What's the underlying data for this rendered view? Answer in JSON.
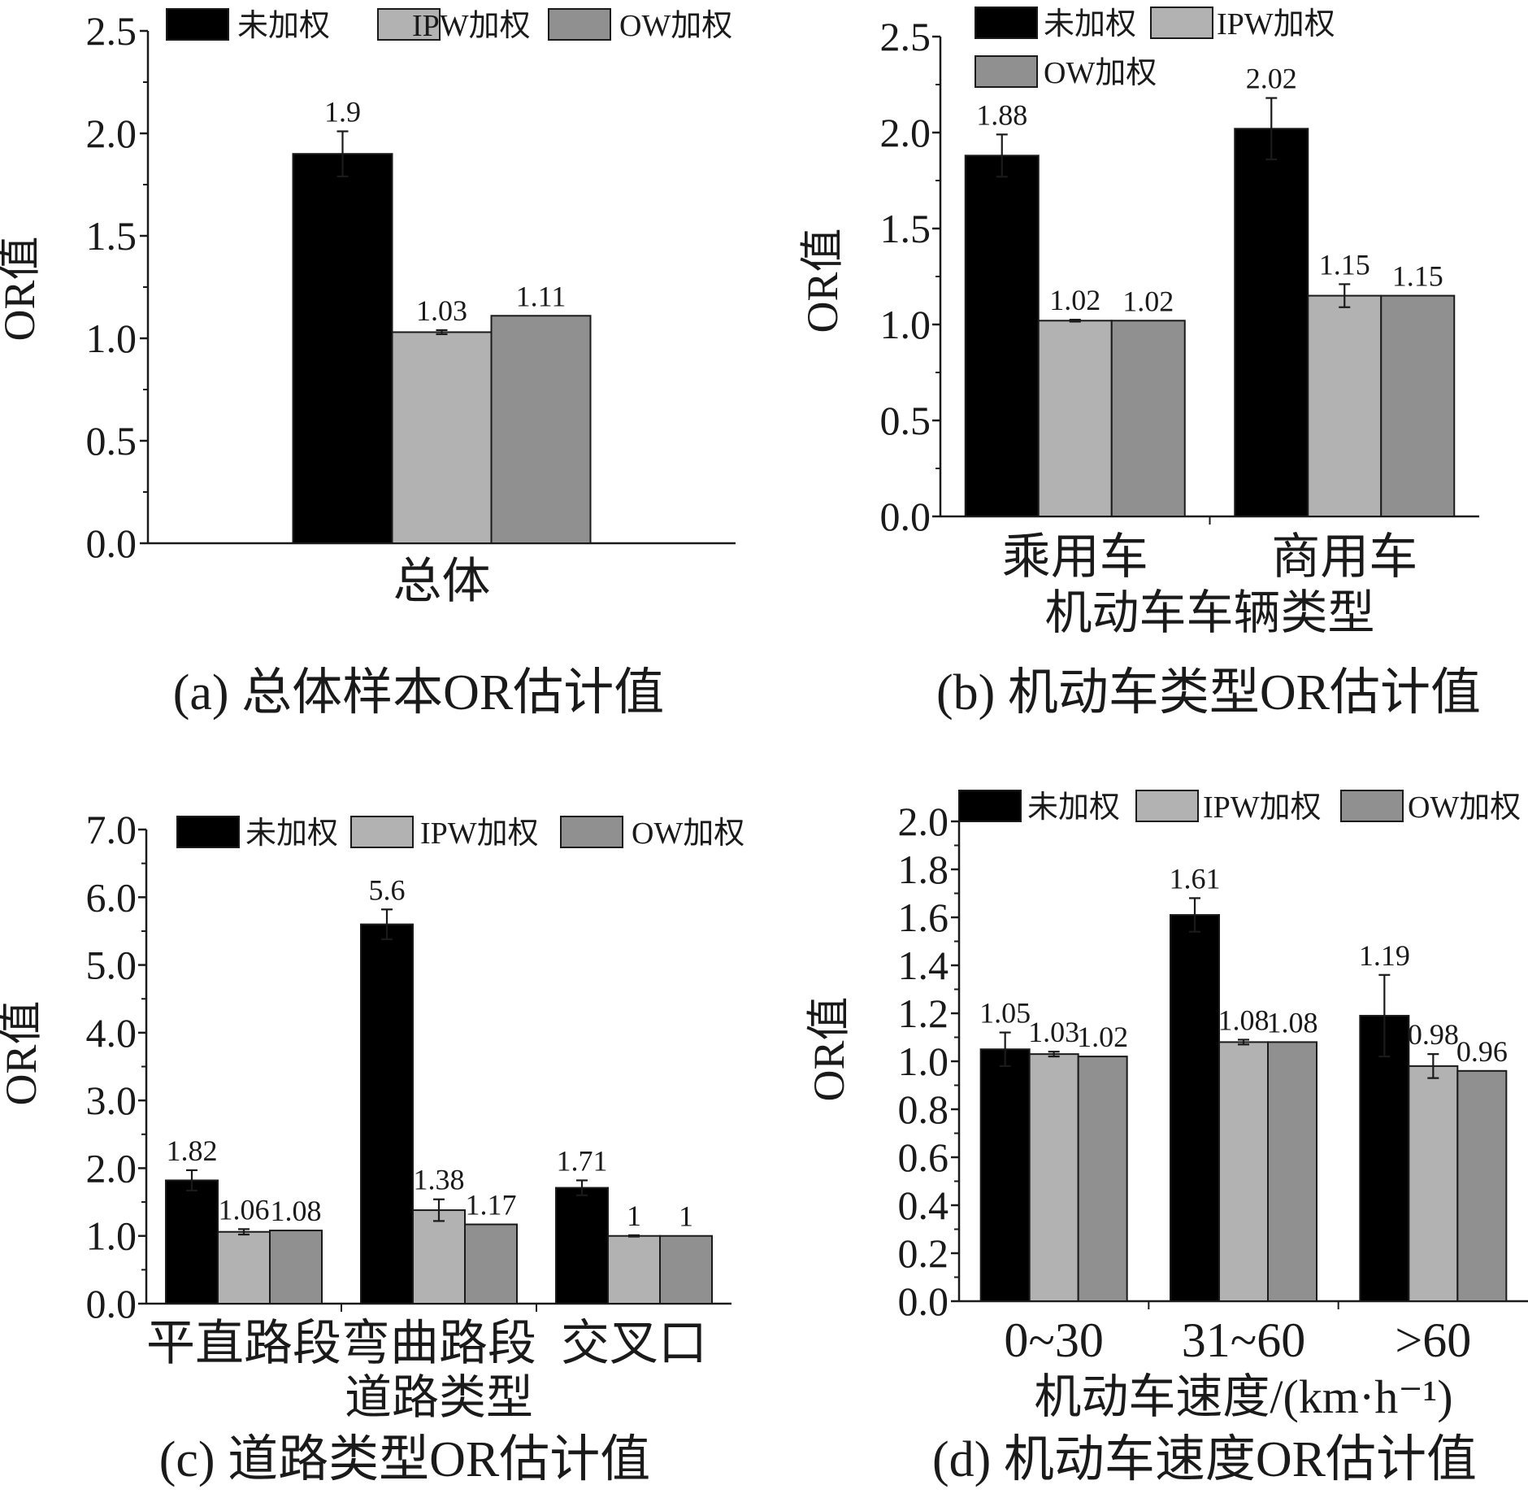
{
  "colors": {
    "series_unweighted": "#000000",
    "series_ipw": "#b2b2b2",
    "series_ow": "#909090",
    "axis": "#1a1a1a"
  },
  "chart_data": [
    {
      "type": "bar",
      "caption": "(a) 总体样本OR估计值",
      "xlabel": "",
      "categories": [
        "总体"
      ],
      "ylabel": "OR值",
      "ylim": [
        0,
        2.5
      ],
      "yticks": [
        0.0,
        0.5,
        1.0,
        1.5,
        2.0,
        2.5
      ],
      "ytick_labels": [
        "0.0",
        "0.5",
        "1.0",
        "1.5",
        "2.0",
        "2.5"
      ],
      "legend_position": "top-right",
      "series": [
        {
          "name": "未加权",
          "values": [
            1.9
          ],
          "labels": [
            "1.9"
          ],
          "errors": [
            0.11
          ]
        },
        {
          "name": "IPW加权",
          "values": [
            1.03
          ],
          "labels": [
            "1.03"
          ],
          "errors": [
            0.01
          ]
        },
        {
          "name": "OW加权",
          "values": [
            1.11
          ],
          "labels": [
            "1.11"
          ],
          "errors": [
            0
          ]
        }
      ]
    },
    {
      "type": "bar",
      "caption": "(b) 机动车类型OR估计值",
      "xlabel": "机动车车辆类型",
      "categories": [
        "乘用车",
        "商用车"
      ],
      "ylabel": "OR值",
      "ylim": [
        0,
        2.5
      ],
      "yticks": [
        0.0,
        0.5,
        1.0,
        1.5,
        2.0,
        2.5
      ],
      "ytick_labels": [
        "0.0",
        "0.5",
        "1.0",
        "1.5",
        "2.0",
        "2.5"
      ],
      "legend_position": "top-left",
      "series": [
        {
          "name": "未加权",
          "values": [
            1.88,
            2.02
          ],
          "labels": [
            "1.88",
            "2.02"
          ],
          "errors": [
            0.11,
            0.16
          ]
        },
        {
          "name": "IPW加权",
          "values": [
            1.02,
            1.15
          ],
          "labels": [
            "1.02",
            "1.15"
          ],
          "errors": [
            0.005,
            0.06
          ]
        },
        {
          "name": "OW加权",
          "values": [
            1.02,
            1.15
          ],
          "labels": [
            "1.02",
            "1.15"
          ],
          "errors": [
            0,
            0
          ]
        }
      ]
    },
    {
      "type": "bar",
      "caption": "(c) 道路类型OR估计值",
      "xlabel": "道路类型",
      "categories": [
        "平直路段",
        "弯曲路段",
        "交叉口"
      ],
      "ylabel": "OR值",
      "ylim": [
        0,
        7
      ],
      "yticks": [
        0,
        1,
        2,
        3,
        4,
        5,
        6,
        7
      ],
      "ytick_labels": [
        "0.0",
        "1.0",
        "2.0",
        "3.0",
        "4.0",
        "5.0",
        "6.0",
        "7.0"
      ],
      "legend_position": "top",
      "series": [
        {
          "name": "未加权",
          "values": [
            1.82,
            5.6,
            1.71
          ],
          "labels": [
            "1.82",
            "5.6",
            "1.71"
          ],
          "errors": [
            0.15,
            0.22,
            0.11
          ]
        },
        {
          "name": "IPW加权",
          "values": [
            1.06,
            1.38,
            1
          ],
          "labels": [
            "1.06",
            "1.38",
            "1"
          ],
          "errors": [
            0.04,
            0.16,
            0.01
          ]
        },
        {
          "name": "OW加权",
          "values": [
            1.08,
            1.17,
            1
          ],
          "labels": [
            "1.08",
            "1.17",
            "1"
          ],
          "errors": [
            0,
            0,
            0
          ]
        }
      ]
    },
    {
      "type": "bar",
      "caption": "(d) 机动车速度OR估计值",
      "xlabel": "机动车速度/(km·h⁻¹)",
      "categories": [
        "0~30",
        "31~60",
        ">60"
      ],
      "ylabel": "OR值",
      "ylim": [
        0,
        2.0
      ],
      "yticks": [
        0.0,
        0.2,
        0.4,
        0.6,
        0.8,
        1.0,
        1.2,
        1.4,
        1.6,
        1.8,
        2.0
      ],
      "ytick_labels": [
        "0.0",
        "0.2",
        "0.4",
        "0.6",
        "0.8",
        "1.0",
        "1.2",
        "1.4",
        "1.6",
        "1.8",
        "2.0"
      ],
      "legend_position": "top",
      "series": [
        {
          "name": "未加权",
          "values": [
            1.05,
            1.61,
            1.19
          ],
          "labels": [
            "1.05",
            "1.61",
            "1.19"
          ],
          "errors": [
            0.07,
            0.07,
            0.17
          ]
        },
        {
          "name": "IPW加权",
          "values": [
            1.03,
            1.08,
            0.98
          ],
          "labels": [
            "1.03",
            "1.08",
            "0.98"
          ],
          "errors": [
            0.01,
            0.01,
            0.05
          ]
        },
        {
          "name": "OW加权",
          "values": [
            1.02,
            1.08,
            0.96
          ],
          "labels": [
            "1.02",
            "1.08",
            "0.96"
          ],
          "errors": [
            0,
            0,
            0
          ]
        }
      ]
    }
  ]
}
